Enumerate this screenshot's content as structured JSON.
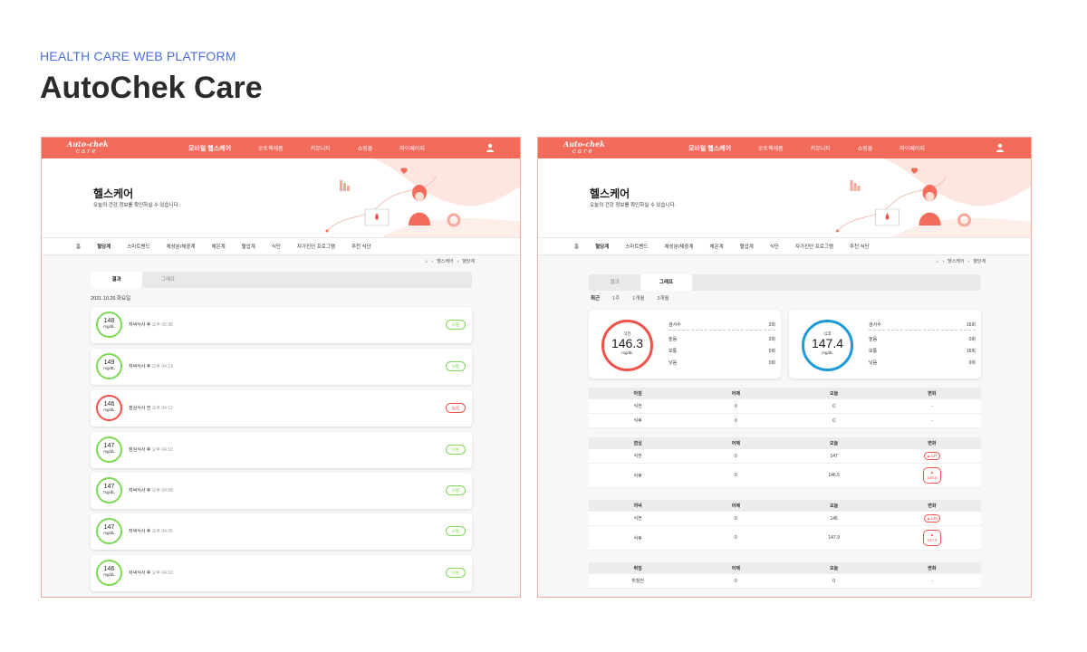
{
  "header": {
    "kicker": "HEALTH CARE WEB PLATFORM",
    "title": "AutoChek Care"
  },
  "brand": {
    "accent": "#f26b5b",
    "green": "#7ed957",
    "red": "#f0524a",
    "blue": "#1a9ad6"
  },
  "nav": {
    "logo_line1": "Auto-chek",
    "logo_line2": "care",
    "items": [
      "모바일 헬스케어",
      "오토첵제품",
      "커뮤니티",
      "쇼핑몰",
      "마이페이지"
    ]
  },
  "hero": {
    "title": "헬스케어",
    "subtitle": "오늘의 건강 정보를 확인하실 수 있습니다."
  },
  "subnav": [
    "홈",
    "혈당계",
    "스마트밴드",
    "체성분/체중계",
    "체온계",
    "혈압계",
    "식단",
    "자가진단 프로그램",
    "추천 식단"
  ],
  "breadcrumb": [
    "헬스케어",
    "혈당계"
  ],
  "left": {
    "tabs": [
      "결과",
      "그래프"
    ],
    "date": "2021.10.26 화요일",
    "readings": [
      {
        "value": "148",
        "unit": "mg/dL",
        "desc": "저녁식사 후",
        "time": "오후 05:38",
        "status": "보통",
        "level": "normal"
      },
      {
        "value": "149",
        "unit": "mg/dL",
        "desc": "저녁식사 후",
        "time": "오후 04:14",
        "status": "보통",
        "level": "normal"
      },
      {
        "value": "146",
        "unit": "mg/dL",
        "desc": "점심식사 전",
        "time": "오후 04:12",
        "status": "높음",
        "level": "high"
      },
      {
        "value": "147",
        "unit": "mg/dL",
        "desc": "점심식사 후",
        "time": "오후 04:10",
        "status": "보통",
        "level": "normal"
      },
      {
        "value": "147",
        "unit": "mg/dL",
        "desc": "저녁식사 후",
        "time": "오후 04:08",
        "status": "보통",
        "level": "normal"
      },
      {
        "value": "147",
        "unit": "mg/dL",
        "desc": "저녁식사 후",
        "time": "오후 04:06",
        "status": "보통",
        "level": "normal"
      },
      {
        "value": "146",
        "unit": "mg/dL",
        "desc": "저녁식사 후",
        "time": "오후 04:03",
        "status": "보통",
        "level": "normal"
      }
    ]
  },
  "right": {
    "tabs": [
      "결과",
      "그래프"
    ],
    "periods": [
      "최근",
      "1주",
      "1개월",
      "3개월"
    ],
    "summaries": [
      {
        "label": "식전",
        "value": "146.3",
        "unit": "mg/dL",
        "stats": [
          [
            "검사수",
            "3회"
          ],
          [
            "높음",
            "3회"
          ],
          [
            "보통",
            "0회"
          ],
          [
            "낮음",
            "0회"
          ]
        ]
      },
      {
        "label": "식후",
        "value": "147.4",
        "unit": "mg/dL",
        "stats": [
          [
            "검사수",
            "16회"
          ],
          [
            "높음",
            "0회"
          ],
          [
            "보통",
            "16회"
          ],
          [
            "낮음",
            "0회"
          ]
        ]
      }
    ],
    "columns": [
      "어제",
      "오늘",
      "변화"
    ],
    "groups": [
      {
        "name": "아침",
        "rows": [
          [
            "식전",
            "0",
            "0",
            "-"
          ],
          [
            "식후",
            "0",
            "0",
            "-"
          ]
        ]
      },
      {
        "name": "점심",
        "rows": [
          [
            "식전",
            "0",
            "147",
            "147"
          ],
          [
            "식후",
            "0",
            "146.5",
            "146.5"
          ]
        ]
      },
      {
        "name": "저녁",
        "rows": [
          [
            "식전",
            "0",
            "145",
            "145"
          ],
          [
            "식후",
            "0",
            "147.9",
            "147.9"
          ]
        ]
      },
      {
        "name": "취침",
        "rows": [
          [
            "취침전",
            "0",
            "0",
            "-"
          ]
        ]
      }
    ]
  }
}
